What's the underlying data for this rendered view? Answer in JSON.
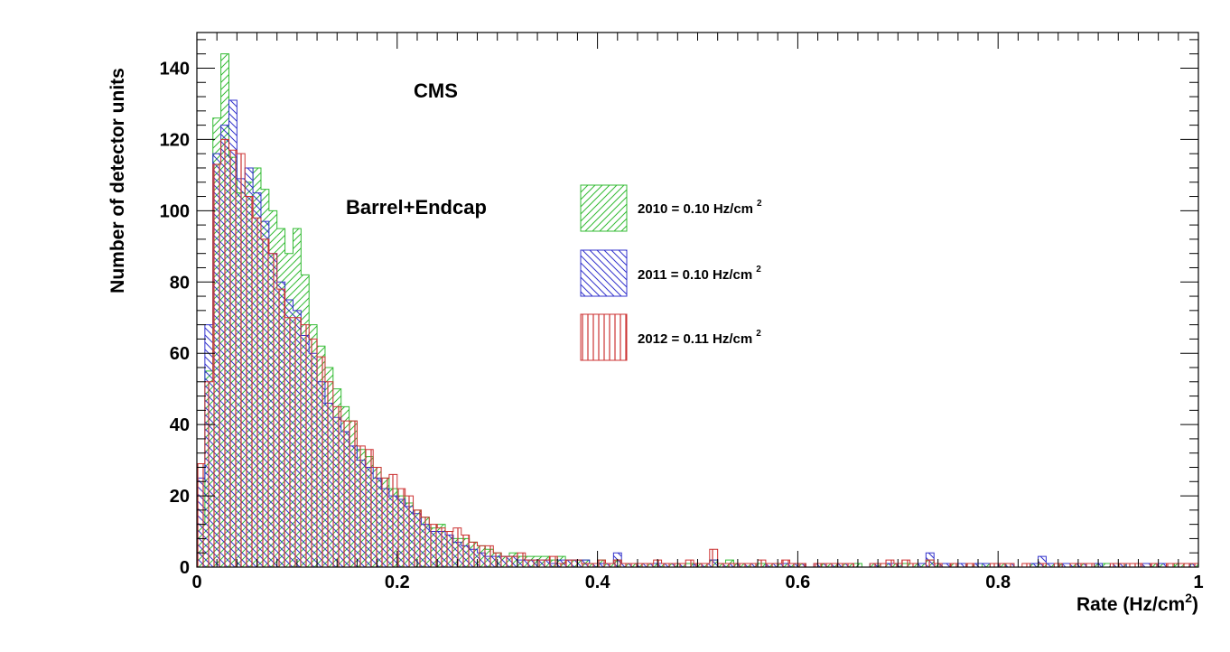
{
  "chart_data": {
    "type": "histogram",
    "xlabel": "Rate (Hz/cm",
    "xlabel_superscript": "2",
    "xlabel_close": ")",
    "ylabel": "Number of detector units",
    "xlim": [
      0,
      1
    ],
    "ylim": [
      0,
      150
    ],
    "bins": 125,
    "bin_width": 0.008,
    "x_ticks": [
      "0",
      "0.2",
      "0.4",
      "0.6",
      "0.8",
      "1"
    ],
    "y_ticks": [
      "0",
      "20",
      "40",
      "60",
      "80",
      "100",
      "120",
      "140"
    ],
    "annotations": [
      "CMS",
      "Barrel+Endcap"
    ],
    "grid": false,
    "legend_position": "center",
    "series": [
      {
        "name": "2010 = 0.10 Hz/cm",
        "name_superscript": "2",
        "color": "#33bb33",
        "hatch": "diagonal-up",
        "values": [
          12,
          55,
          126,
          144,
          115,
          105,
          108,
          112,
          106,
          100,
          95,
          88,
          95,
          82,
          68,
          62,
          56,
          50,
          45,
          41,
          33,
          31,
          28,
          25,
          22,
          20,
          18,
          16,
          14,
          11,
          12,
          9,
          8,
          8,
          7,
          6,
          5,
          4,
          3,
          4,
          3,
          3,
          3,
          3,
          2,
          3,
          2,
          2,
          2,
          1,
          2,
          1,
          2,
          1,
          1,
          1,
          1,
          1,
          1,
          1,
          1,
          1,
          1,
          1,
          2,
          1,
          2,
          1,
          1,
          1,
          1,
          1,
          1,
          1,
          1,
          1,
          0,
          0,
          1,
          1,
          1,
          1,
          1,
          0,
          1,
          1,
          1,
          1,
          1,
          1,
          1,
          2,
          1,
          0,
          1,
          0,
          1,
          0,
          1,
          0,
          1,
          0,
          0,
          0,
          1,
          1,
          1,
          1,
          0,
          1,
          1,
          0,
          1,
          1,
          0,
          1,
          0,
          0,
          0,
          1,
          1,
          0,
          1,
          1,
          1
        ]
      },
      {
        "name": "2011 = 0.10 Hz/cm",
        "name_superscript": "2",
        "color": "#3333cc",
        "hatch": "diagonal-down",
        "values": [
          25,
          68,
          116,
          124,
          131,
          109,
          112,
          105,
          97,
          88,
          80,
          75,
          72,
          65,
          60,
          52,
          46,
          42,
          38,
          34,
          30,
          28,
          25,
          22,
          20,
          19,
          17,
          15,
          12,
          10,
          10,
          9,
          7,
          6,
          5,
          4,
          3,
          3,
          3,
          3,
          2,
          2,
          2,
          2,
          1,
          2,
          2,
          2,
          2,
          1,
          1,
          1,
          4,
          1,
          1,
          1,
          1,
          1,
          1,
          1,
          1,
          0,
          1,
          1,
          2,
          1,
          1,
          1,
          1,
          1,
          0,
          1,
          1,
          1,
          1,
          1,
          0,
          1,
          1,
          1,
          1,
          1,
          0,
          0,
          1,
          0,
          1,
          1,
          0,
          0,
          1,
          4,
          1,
          1,
          0,
          1,
          0,
          1,
          1,
          0,
          1,
          1,
          0,
          0,
          1,
          3,
          1,
          0,
          1,
          1,
          1,
          0,
          1,
          0,
          1,
          1,
          0,
          0,
          1,
          1,
          1,
          0,
          0,
          0,
          1
        ]
      },
      {
        "name": "2012 = 0.11 Hz/cm",
        "name_superscript": "2",
        "color": "#cc3333",
        "hatch": "vertical",
        "values": [
          29,
          52,
          113,
          120,
          117,
          116,
          104,
          98,
          92,
          88,
          78,
          70,
          70,
          68,
          64,
          59,
          52,
          45,
          41,
          41,
          34,
          33,
          28,
          25,
          26,
          22,
          20,
          16,
          14,
          12,
          11,
          10,
          11,
          9,
          7,
          6,
          6,
          4,
          3,
          3,
          4,
          2,
          2,
          2,
          3,
          1,
          2,
          2,
          1,
          1,
          2,
          1,
          2,
          1,
          1,
          1,
          1,
          2,
          1,
          1,
          1,
          2,
          1,
          1,
          5,
          1,
          1,
          1,
          1,
          1,
          2,
          1,
          1,
          2,
          1,
          1,
          0,
          1,
          1,
          1,
          1,
          1,
          0,
          0,
          1,
          1,
          2,
          1,
          2,
          1,
          0,
          2,
          1,
          0,
          1,
          0,
          1,
          0,
          0,
          1,
          1,
          1,
          0,
          1,
          0,
          1,
          0,
          1,
          0,
          1,
          1,
          1,
          0,
          0,
          1,
          1,
          1,
          1,
          0,
          1,
          0,
          1,
          1,
          1,
          1
        ]
      }
    ]
  }
}
